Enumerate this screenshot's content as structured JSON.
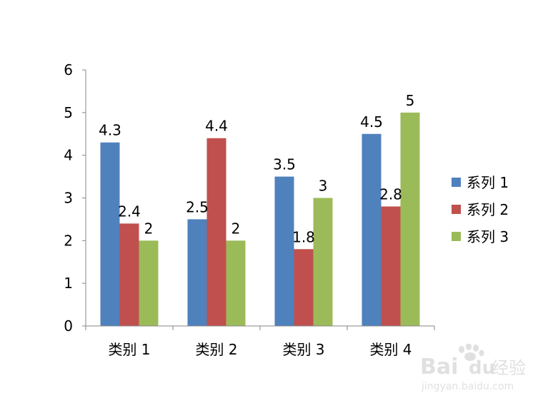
{
  "chart_data": {
    "type": "bar",
    "categories": [
      "类别 1",
      "类别 2",
      "类别 3",
      "类别 4"
    ],
    "series": [
      {
        "name": "系列 1",
        "values": [
          4.3,
          2.5,
          3.5,
          4.5
        ],
        "color": "#4F81BD"
      },
      {
        "name": "系列 2",
        "values": [
          2.4,
          4.4,
          1.8,
          2.8
        ],
        "color": "#C0504D"
      },
      {
        "name": "系列 3",
        "values": [
          2,
          2,
          3,
          5
        ],
        "color": "#9BBB59"
      }
    ],
    "data_labels": [
      [
        "4.3",
        "2.5",
        "3.5",
        "4.5"
      ],
      [
        "2.4",
        "4.4",
        "1.8",
        "2.8"
      ],
      [
        "2",
        "2",
        "3",
        "5"
      ]
    ],
    "yticks": [
      "0",
      "1",
      "2",
      "3",
      "4",
      "5",
      "6"
    ],
    "ylim": [
      0,
      6
    ],
    "grid": false,
    "legend_position": "right"
  },
  "watermark": {
    "brand_text": "Bai",
    "brand_text_2": "du",
    "brand_cn": "经验",
    "url": "jingyan.baidu.com",
    "icon": "baidu-paw-icon"
  }
}
